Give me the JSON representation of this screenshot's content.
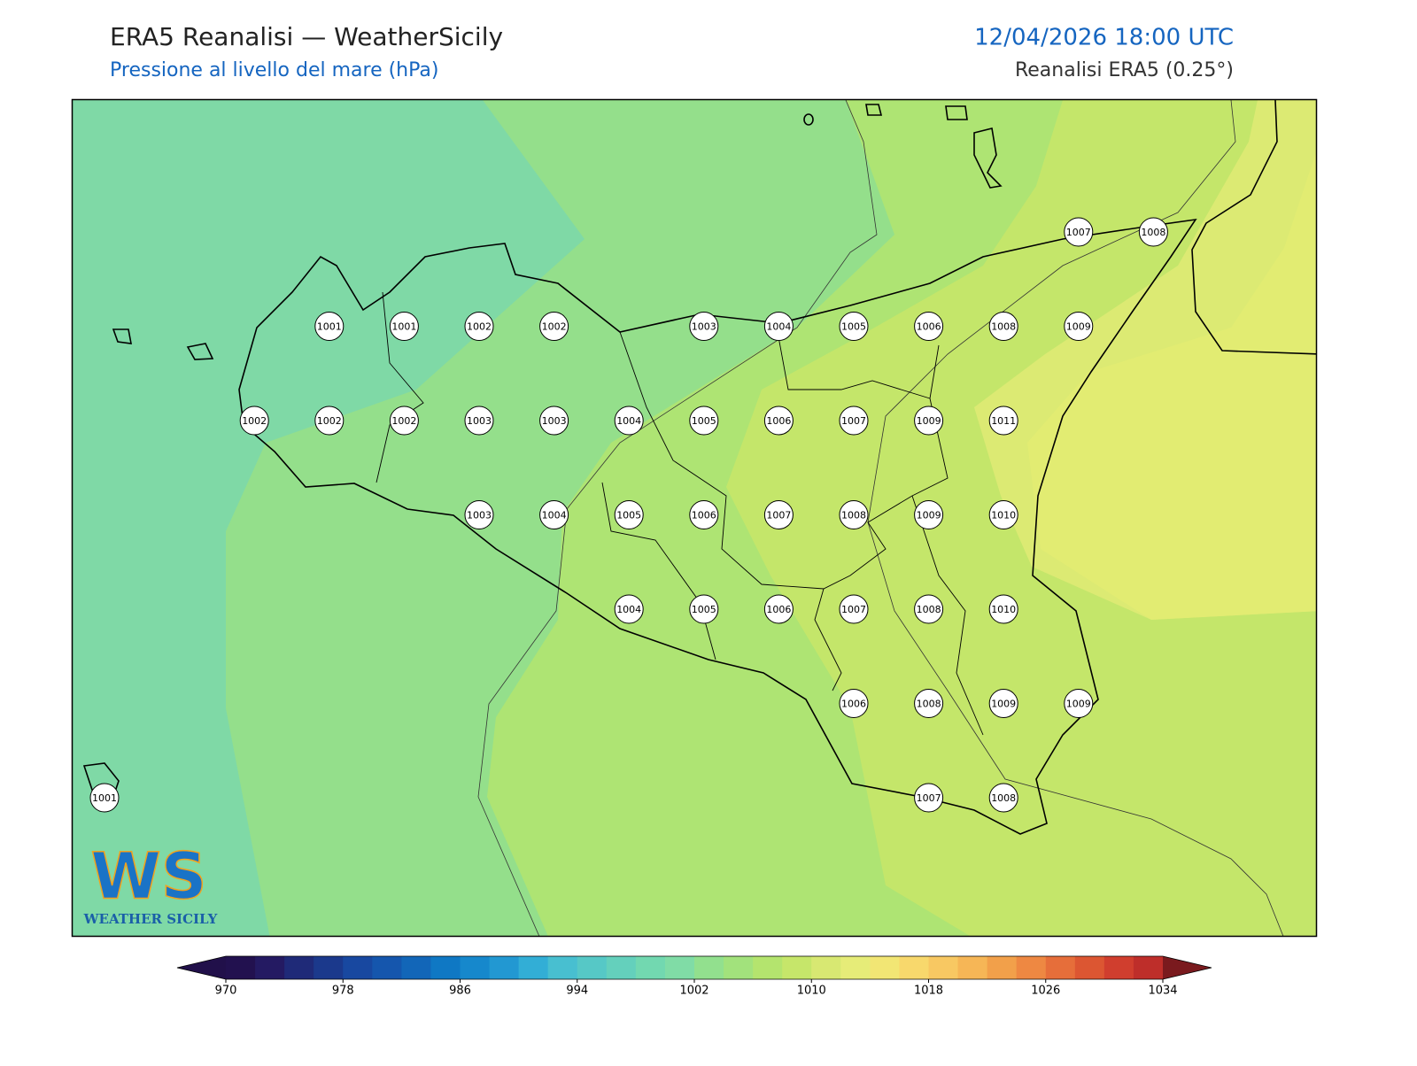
{
  "header": {
    "title": "ERA5 Reanalisi — WeatherSicily",
    "subtitle": "Pressione al livello del mare (hPa)",
    "datetime": "12/04/2026 18:00 UTC",
    "source": "Reanalisi ERA5 (0.25°)"
  },
  "map": {
    "grid": [
      [
        null,
        null,
        null,
        null,
        null,
        null,
        null,
        null,
        null,
        null,
        null,
        null,
        null,
        1007,
        1008
      ],
      [
        null,
        null,
        null,
        1001,
        1001,
        1002,
        1002,
        null,
        1003,
        1004,
        1005,
        1006,
        1008,
        1009,
        null
      ],
      [
        null,
        null,
        1002,
        1002,
        1002,
        1003,
        1003,
        1004,
        1005,
        1006,
        1007,
        1009,
        1011,
        null,
        null
      ],
      [
        null,
        null,
        null,
        null,
        null,
        1003,
        1004,
        1005,
        1006,
        1007,
        1008,
        1009,
        1010,
        null,
        null
      ],
      [
        null,
        null,
        null,
        null,
        null,
        null,
        null,
        1004,
        1005,
        1006,
        1007,
        1008,
        1010,
        null,
        null
      ],
      [
        null,
        null,
        null,
        null,
        null,
        null,
        null,
        null,
        null,
        null,
        1006,
        1008,
        1009,
        1009,
        null
      ],
      [
        1001,
        null,
        null,
        null,
        null,
        null,
        null,
        null,
        null,
        null,
        null,
        1007,
        1008,
        null,
        null
      ]
    ]
  },
  "logo": {
    "initials": "WS",
    "name": "WEATHER SICILY"
  },
  "colorbar": {
    "range": [
      970,
      1034
    ],
    "ticks": [
      970,
      978,
      986,
      994,
      1002,
      1010,
      1018,
      1026,
      1034
    ],
    "under": "#21104a",
    "over": "#7a1a1e",
    "colors": [
      "#22114f",
      "#241a62",
      "#1f2a78",
      "#1b398c",
      "#1848a0",
      "#1556ad",
      "#1266b8",
      "#0f78c4",
      "#1688cc",
      "#2298d2",
      "#32aed6",
      "#48bfd0",
      "#56c8c6",
      "#64d0bc",
      "#72d8b0",
      "#80dca6",
      "#92e08e",
      "#a2e27c",
      "#b4e46e",
      "#c6e66a",
      "#d8e872",
      "#e6ec78",
      "#f2e674",
      "#f8d86c",
      "#f8c862",
      "#f6b656",
      "#f2a04a",
      "#ee8842",
      "#e66e3a",
      "#dc5632",
      "#d03e2e",
      "#be2e2a"
    ]
  }
}
